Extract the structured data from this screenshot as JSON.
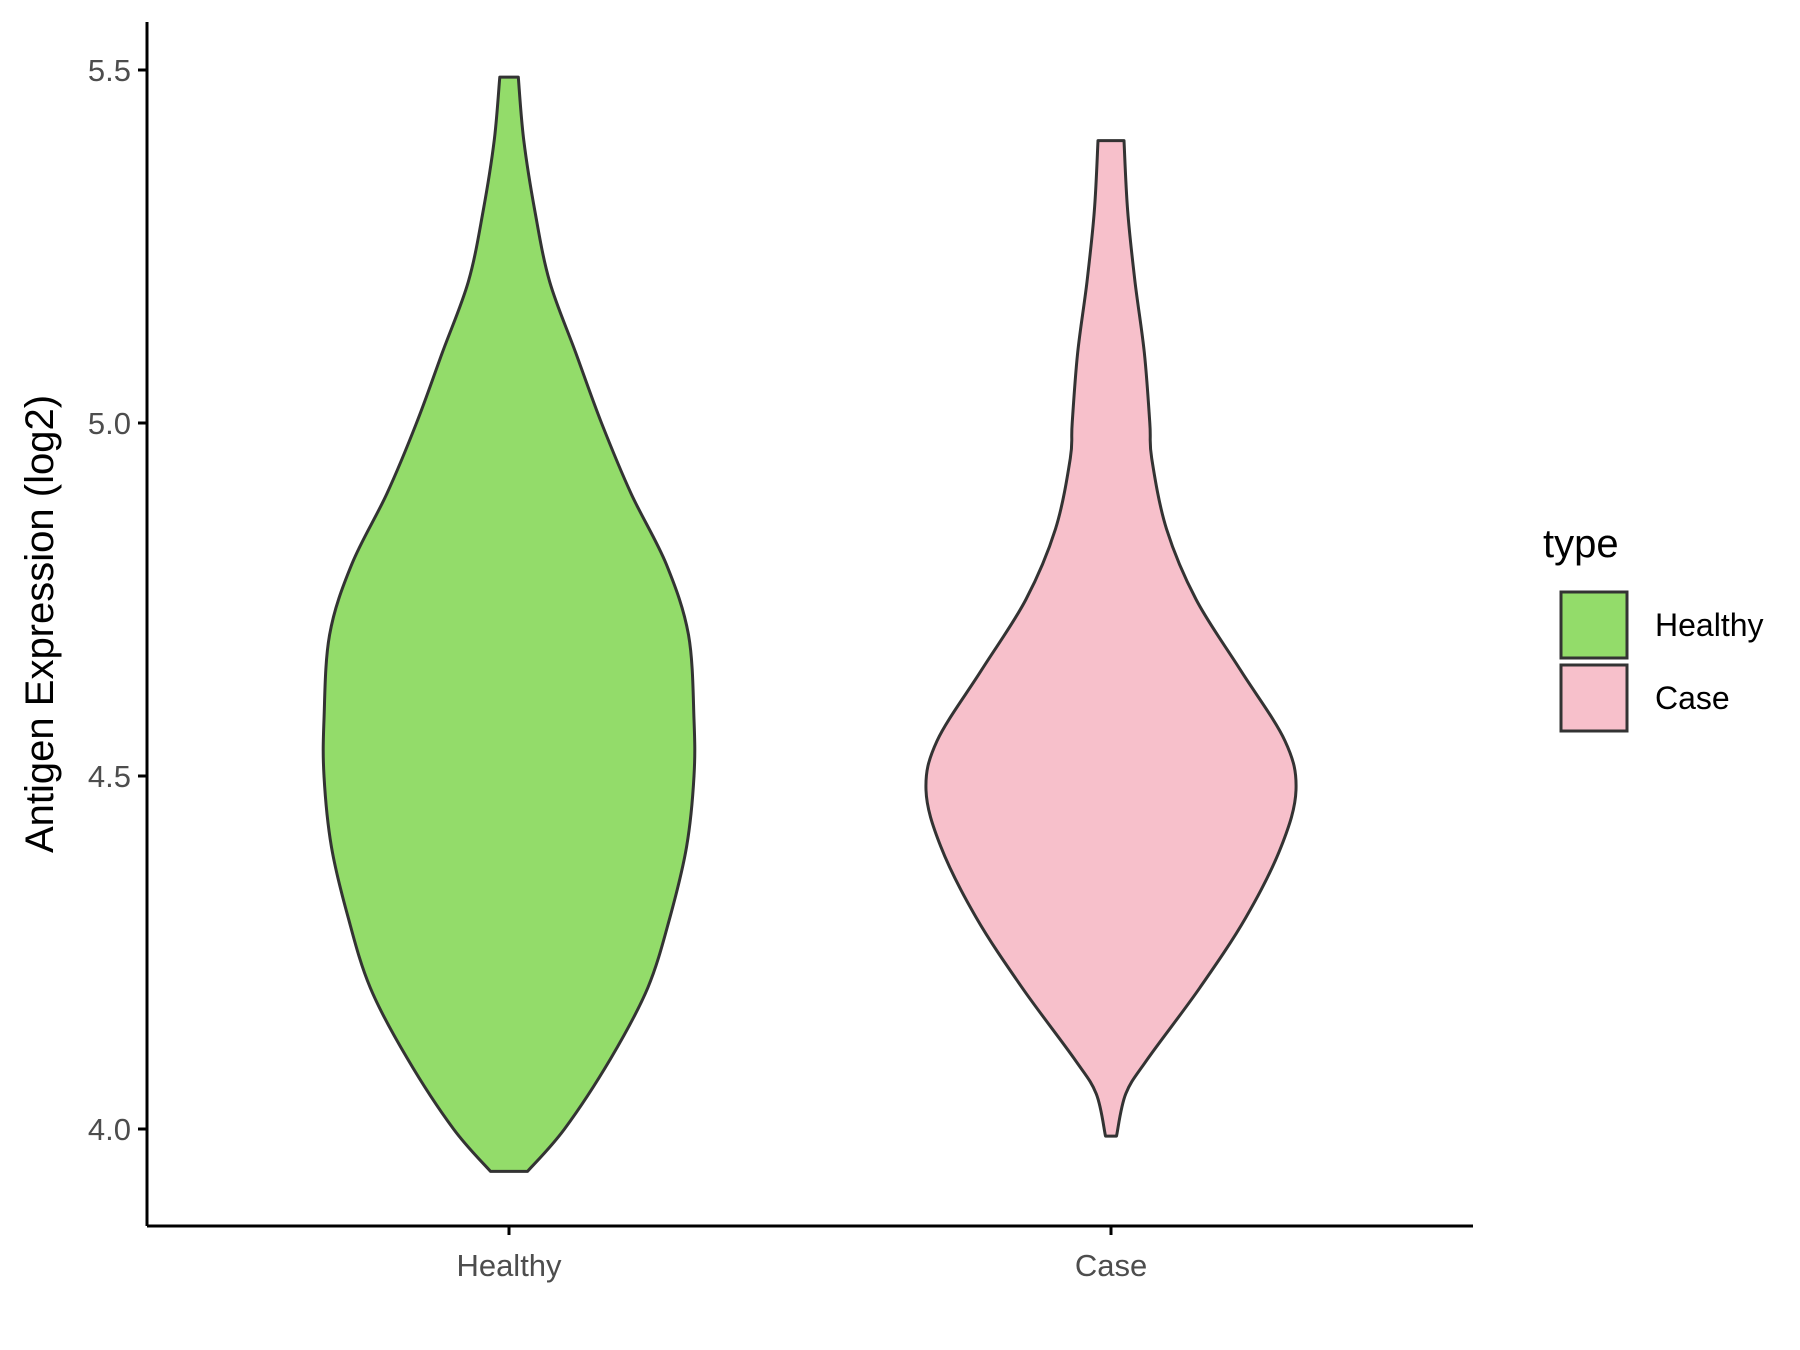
{
  "chart_data": {
    "type": "violin",
    "title": "",
    "xlabel": "",
    "ylabel": "Antigen Expression (log2)",
    "categories": [
      "Healthy",
      "Case"
    ],
    "ylim": [
      3.86,
      5.565
    ],
    "y_ticks": [
      "4.0",
      "4.5",
      "5.0",
      "5.5"
    ],
    "grid": false,
    "legend": {
      "title": "type",
      "position": "right",
      "entries": [
        "Healthy",
        "Case"
      ]
    },
    "series": [
      {
        "name": "Healthy",
        "color": "#93dc6a",
        "y_range": [
          3.94,
          5.49
        ],
        "density_profile": [
          [
            3.94,
            0.1
          ],
          [
            4.0,
            0.3
          ],
          [
            4.1,
            0.55
          ],
          [
            4.2,
            0.75
          ],
          [
            4.3,
            0.87
          ],
          [
            4.4,
            0.96
          ],
          [
            4.5,
            1.0
          ],
          [
            4.58,
            1.0
          ],
          [
            4.7,
            0.97
          ],
          [
            4.8,
            0.85
          ],
          [
            4.9,
            0.66
          ],
          [
            5.0,
            0.5
          ],
          [
            5.1,
            0.36
          ],
          [
            5.2,
            0.22
          ],
          [
            5.3,
            0.14
          ],
          [
            5.4,
            0.08
          ],
          [
            5.49,
            0.05
          ]
        ]
      },
      {
        "name": "Case",
        "color": "#f7c0cb",
        "y_range": [
          3.99,
          5.4
        ],
        "density_profile": [
          [
            3.99,
            0.03
          ],
          [
            4.05,
            0.08
          ],
          [
            4.1,
            0.2
          ],
          [
            4.2,
            0.48
          ],
          [
            4.3,
            0.73
          ],
          [
            4.4,
            0.92
          ],
          [
            4.48,
            1.0
          ],
          [
            4.55,
            0.94
          ],
          [
            4.65,
            0.7
          ],
          [
            4.75,
            0.46
          ],
          [
            4.85,
            0.3
          ],
          [
            4.95,
            0.22
          ],
          [
            5.0,
            0.21
          ],
          [
            5.1,
            0.18
          ],
          [
            5.2,
            0.13
          ],
          [
            5.3,
            0.09
          ],
          [
            5.4,
            0.07
          ]
        ]
      }
    ]
  }
}
